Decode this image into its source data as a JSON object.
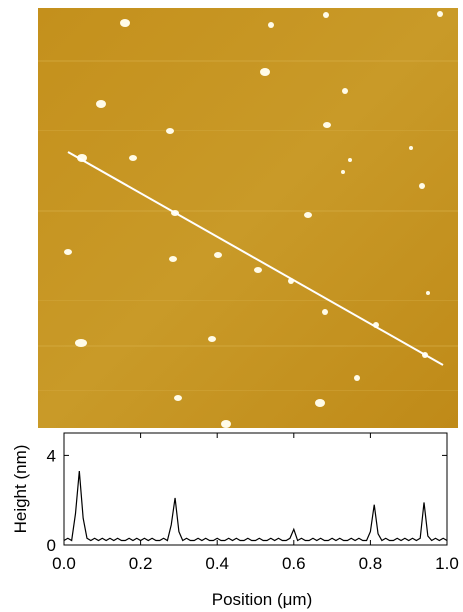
{
  "chart_data": {
    "type": "line",
    "ylabel": "Height (nm)",
    "xlabel": "Position (μm)",
    "xlim": [
      0,
      1.0
    ],
    "xticks": [
      {
        "value": 0,
        "label": "0.0"
      },
      0.2,
      0.4,
      0.6,
      0.8,
      {
        "value": 1.0,
        "label": "1.0"
      }
    ],
    "ylim": [
      0,
      5
    ],
    "yticks": [
      0,
      4
    ],
    "color": "#000000",
    "x": [
      0.0,
      0.01,
      0.02,
      0.03,
      0.04,
      0.05,
      0.06,
      0.07,
      0.08,
      0.09,
      0.1,
      0.11,
      0.12,
      0.13,
      0.14,
      0.15,
      0.16,
      0.17,
      0.18,
      0.19,
      0.2,
      0.21,
      0.22,
      0.23,
      0.24,
      0.25,
      0.26,
      0.27,
      0.28,
      0.29,
      0.3,
      0.31,
      0.32,
      0.33,
      0.34,
      0.35,
      0.36,
      0.37,
      0.38,
      0.39,
      0.4,
      0.41,
      0.42,
      0.43,
      0.44,
      0.45,
      0.46,
      0.47,
      0.48,
      0.49,
      0.5,
      0.51,
      0.52,
      0.53,
      0.54,
      0.55,
      0.56,
      0.57,
      0.58,
      0.59,
      0.6,
      0.61,
      0.62,
      0.63,
      0.64,
      0.65,
      0.66,
      0.67,
      0.68,
      0.69,
      0.7,
      0.71,
      0.72,
      0.73,
      0.74,
      0.75,
      0.76,
      0.77,
      0.78,
      0.79,
      0.8,
      0.81,
      0.82,
      0.83,
      0.84,
      0.85,
      0.86,
      0.87,
      0.88,
      0.89,
      0.9,
      0.91,
      0.92,
      0.93,
      0.94,
      0.95,
      0.96,
      0.97,
      0.98,
      0.99,
      1.0
    ],
    "values": [
      0.2,
      0.3,
      0.2,
      1.4,
      3.3,
      1.2,
      0.3,
      0.2,
      0.3,
      0.2,
      0.3,
      0.2,
      0.3,
      0.2,
      0.3,
      0.2,
      0.2,
      0.3,
      0.2,
      0.3,
      0.2,
      0.3,
      0.2,
      0.3,
      0.2,
      0.2,
      0.3,
      0.2,
      0.9,
      2.1,
      0.6,
      0.2,
      0.3,
      0.2,
      0.2,
      0.3,
      0.2,
      0.3,
      0.2,
      0.2,
      0.3,
      0.2,
      0.2,
      0.3,
      0.2,
      0.3,
      0.2,
      0.2,
      0.3,
      0.2,
      0.2,
      0.3,
      0.2,
      0.2,
      0.3,
      0.2,
      0.3,
      0.2,
      0.2,
      0.3,
      0.7,
      0.2,
      0.3,
      0.2,
      0.2,
      0.3,
      0.2,
      0.3,
      0.2,
      0.2,
      0.3,
      0.2,
      0.3,
      0.2,
      0.2,
      0.3,
      0.2,
      0.3,
      0.2,
      0.2,
      0.6,
      1.8,
      0.5,
      0.2,
      0.3,
      0.2,
      0.2,
      0.3,
      0.2,
      0.3,
      0.2,
      0.3,
      0.2,
      0.3,
      1.9,
      0.4,
      0.2,
      0.3,
      0.2,
      0.3,
      0.2
    ]
  }
}
